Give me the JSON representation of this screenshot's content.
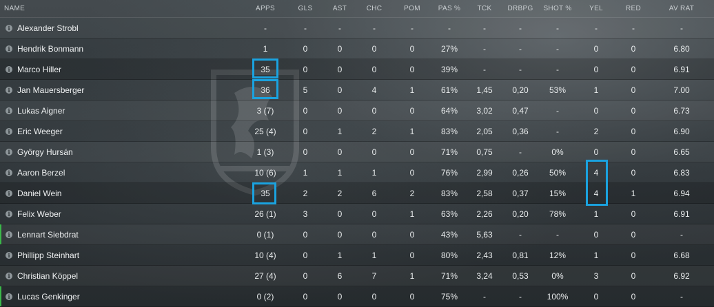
{
  "columns": [
    "NAME",
    "APPS",
    "GLS",
    "AST",
    "CHC",
    "POM",
    "PAS %",
    "TCK",
    "DRBPG",
    "SHOT %",
    "YEL",
    "RED",
    "AV RAT"
  ],
  "info_glyph": "i",
  "rows": [
    {
      "name": "Alexander Strobl",
      "apps": "-",
      "gls": "-",
      "ast": "-",
      "chc": "-",
      "pom": "-",
      "pas": "-",
      "tck": "-",
      "drbpg": "-",
      "shot": "-",
      "yel": "-",
      "red": "-",
      "avrat": "-"
    },
    {
      "name": "Hendrik Bonmann",
      "apps": "1",
      "gls": "0",
      "ast": "0",
      "chc": "0",
      "pom": "0",
      "pas": "27%",
      "tck": "-",
      "drbpg": "-",
      "shot": "-",
      "yel": "0",
      "red": "0",
      "avrat": "6.80"
    },
    {
      "name": "Marco Hiller",
      "apps": "35",
      "gls": "0",
      "ast": "0",
      "chc": "0",
      "pom": "0",
      "pas": "39%",
      "tck": "-",
      "drbpg": "-",
      "shot": "-",
      "yel": "0",
      "red": "0",
      "avrat": "6.91"
    },
    {
      "name": "Jan Mauersberger",
      "apps": "36",
      "gls": "5",
      "ast": "0",
      "chc": "4",
      "pom": "1",
      "pas": "61%",
      "tck": "1,45",
      "drbpg": "0,20",
      "shot": "53%",
      "yel": "1",
      "red": "0",
      "avrat": "7.00"
    },
    {
      "name": "Lukas Aigner",
      "apps": "3 (7)",
      "gls": "0",
      "ast": "0",
      "chc": "0",
      "pom": "0",
      "pas": "64%",
      "tck": "3,02",
      "drbpg": "0,47",
      "shot": "-",
      "yel": "0",
      "red": "0",
      "avrat": "6.73"
    },
    {
      "name": "Eric Weeger",
      "apps": "25 (4)",
      "gls": "0",
      "ast": "1",
      "chc": "2",
      "pom": "1",
      "pas": "83%",
      "tck": "2,05",
      "drbpg": "0,36",
      "shot": "-",
      "yel": "2",
      "red": "0",
      "avrat": "6.90"
    },
    {
      "name": "György Hursán",
      "apps": "1 (3)",
      "gls": "0",
      "ast": "0",
      "chc": "0",
      "pom": "0",
      "pas": "71%",
      "tck": "0,75",
      "drbpg": "-",
      "shot": "0%",
      "yel": "0",
      "red": "0",
      "avrat": "6.65"
    },
    {
      "name": "Aaron Berzel",
      "apps": "10 (6)",
      "gls": "1",
      "ast": "1",
      "chc": "1",
      "pom": "0",
      "pas": "76%",
      "tck": "2,99",
      "drbpg": "0,26",
      "shot": "50%",
      "yel": "4",
      "red": "0",
      "avrat": "6.83"
    },
    {
      "name": "Daniel Wein",
      "apps": "35",
      "gls": "2",
      "ast": "2",
      "chc": "6",
      "pom": "2",
      "pas": "83%",
      "tck": "2,58",
      "drbpg": "0,37",
      "shot": "15%",
      "yel": "4",
      "red": "1",
      "avrat": "6.94"
    },
    {
      "name": "Felix Weber",
      "apps": "26 (1)",
      "gls": "3",
      "ast": "0",
      "chc": "0",
      "pom": "1",
      "pas": "63%",
      "tck": "2,26",
      "drbpg": "0,20",
      "shot": "78%",
      "yel": "1",
      "red": "0",
      "avrat": "6.91"
    },
    {
      "name": "Lennart Siebdrat",
      "apps": "0 (1)",
      "gls": "0",
      "ast": "0",
      "chc": "0",
      "pom": "0",
      "pas": "43%",
      "tck": "5,63",
      "drbpg": "-",
      "shot": "-",
      "yel": "0",
      "red": "0",
      "avrat": "-"
    },
    {
      "name": "Phillipp Steinhart",
      "apps": "10 (4)",
      "gls": "0",
      "ast": "1",
      "chc": "1",
      "pom": "0",
      "pas": "80%",
      "tck": "2,43",
      "drbpg": "0,81",
      "shot": "12%",
      "yel": "1",
      "red": "0",
      "avrat": "6.68"
    },
    {
      "name": "Christian Köppel",
      "apps": "27 (4)",
      "gls": "0",
      "ast": "6",
      "chc": "7",
      "pom": "1",
      "pas": "71%",
      "tck": "3,24",
      "drbpg": "0,53",
      "shot": "0%",
      "yel": "3",
      "red": "0",
      "avrat": "6.92"
    },
    {
      "name": "Lucas Genkinger",
      "apps": "0 (2)",
      "gls": "0",
      "ast": "0",
      "chc": "0",
      "pom": "0",
      "pas": "75%",
      "tck": "-",
      "drbpg": "-",
      "shot": "100%",
      "yel": "0",
      "red": "0",
      "avrat": "-"
    }
  ],
  "highlight_color": "#1aa3e0"
}
